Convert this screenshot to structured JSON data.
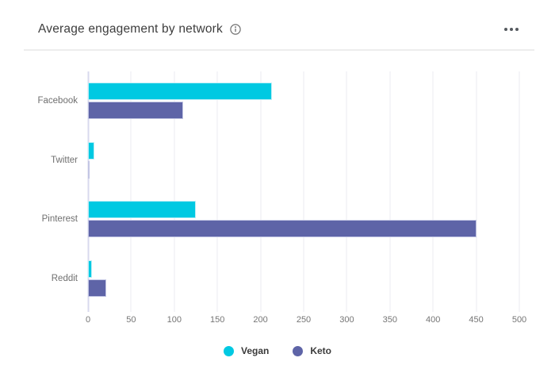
{
  "header": {
    "title": "Average engagement by network"
  },
  "chart_data": {
    "type": "bar",
    "orientation": "horizontal",
    "title": "Average engagement by network",
    "categories": [
      "Facebook",
      "Twitter",
      "Pinterest",
      "Reddit"
    ],
    "series": [
      {
        "name": "Vegan",
        "color": "#00c9e2",
        "border": "#bdeef6",
        "values": [
          213,
          7,
          125,
          5
        ]
      },
      {
        "name": "Keto",
        "color": "#5e64a7",
        "border": "#c3c6e4",
        "values": [
          110,
          2,
          450,
          21
        ]
      }
    ],
    "xlim": [
      0,
      500
    ],
    "xticks": [
      0,
      50,
      100,
      150,
      200,
      250,
      300,
      350,
      400,
      450,
      500
    ],
    "grid": true,
    "legend_position": "bottom"
  },
  "colors": {
    "title_text": "#3d3d3d",
    "axis_text": "#757575",
    "category_text": "#6f6f6f",
    "gridline": "#ebebf2",
    "zero_line": "#d8daee",
    "divider": "#ededed"
  }
}
